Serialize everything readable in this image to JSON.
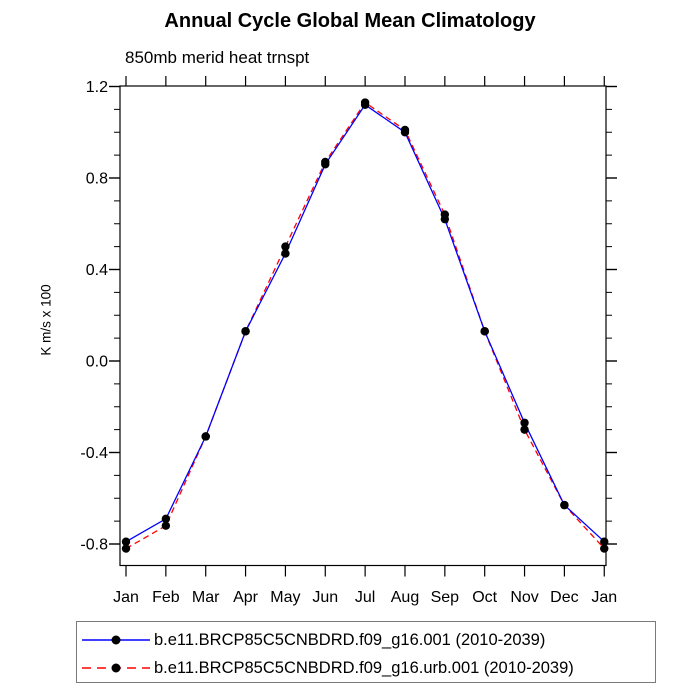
{
  "chart_data": {
    "type": "line",
    "title": "Annual Cycle Global Mean Climatology",
    "subtitle": "850mb merid heat trnspt",
    "ylabel": "K m/s x 100",
    "xlabel": "",
    "categories": [
      "Jan",
      "Feb",
      "Mar",
      "Apr",
      "May",
      "Jun",
      "Jul",
      "Aug",
      "Sep",
      "Oct",
      "Nov",
      "Dec",
      "Jan"
    ],
    "y_major_ticks": [
      -0.8,
      -0.4,
      0.0,
      0.4,
      0.8,
      1.2
    ],
    "y_tick_labels": [
      "-0.8",
      "-0.4",
      "0.0",
      "0.4",
      "0.8",
      "1.2"
    ],
    "y_minor_step": 0.1,
    "ylim": [
      -0.9,
      1.2
    ],
    "grid": false,
    "legend_position": "bottom",
    "axis_color": "#000000",
    "marker_shape": "filled-circle",
    "series": [
      {
        "name": "b.e11.BRCP85C5CNBDRD.f09_g16.001 (2010-2039)",
        "color": "#0000ff",
        "style": "solid",
        "marker_color": "#000000",
        "values": [
          -0.79,
          -0.69,
          -0.33,
          0.13,
          0.47,
          0.86,
          1.12,
          1.0,
          0.62,
          0.13,
          -0.27,
          -0.63,
          -0.79
        ]
      },
      {
        "name": "b.e11.BRCP85C5CNBDRD.f09_g16.urb.001 (2010-2039)",
        "color": "#ff0000",
        "style": "dashed",
        "marker_color": "#000000",
        "values": [
          -0.82,
          -0.72,
          -0.33,
          0.13,
          0.5,
          0.87,
          1.13,
          1.01,
          0.64,
          0.13,
          -0.3,
          -0.63,
          -0.82
        ]
      }
    ]
  }
}
